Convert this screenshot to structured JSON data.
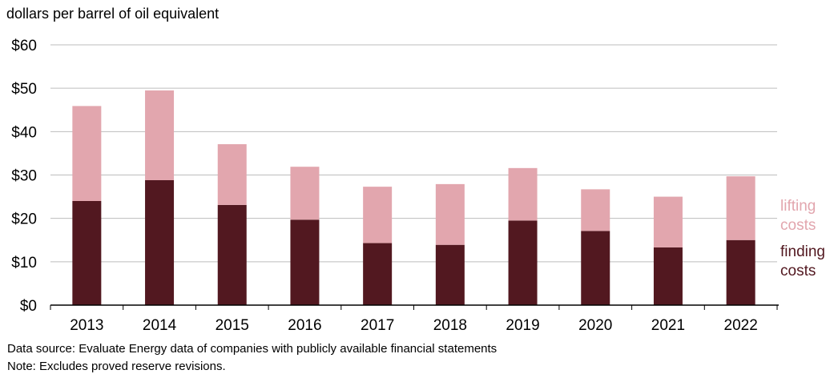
{
  "chart_data": {
    "type": "bar",
    "stacked": true,
    "ylabel": "dollars per barrel of oil equivalent",
    "categories": [
      "2013",
      "2014",
      "2015",
      "2016",
      "2017",
      "2018",
      "2019",
      "2020",
      "2021",
      "2022"
    ],
    "series": [
      {
        "name": "finding costs",
        "color": "#521820",
        "values": [
          24.0,
          28.8,
          23.1,
          19.7,
          14.3,
          13.9,
          19.5,
          17.1,
          13.3,
          15.0
        ]
      },
      {
        "name": "lifting costs",
        "color": "#e2a6ae",
        "values": [
          21.9,
          20.7,
          14.0,
          12.2,
          13.0,
          14.0,
          12.1,
          9.6,
          11.7,
          14.7
        ]
      }
    ],
    "ylim": [
      0,
      60
    ],
    "yticks": [
      0,
      10,
      20,
      30,
      40,
      50,
      60
    ],
    "ytick_labels": [
      "$0",
      "$10",
      "$20",
      "$30",
      "$40",
      "$50",
      "$60"
    ],
    "grid": true,
    "legend": [
      {
        "line1": "lifting",
        "line2": "costs",
        "color": "#e2a6ae"
      },
      {
        "line1": "finding",
        "line2": "costs",
        "color": "#521820"
      }
    ],
    "legend_position": "right"
  },
  "notes": {
    "source": "Data source: Evaluate Energy data of companies with publicly available financial statements",
    "note": "Note: Excludes proved reserve revisions."
  }
}
